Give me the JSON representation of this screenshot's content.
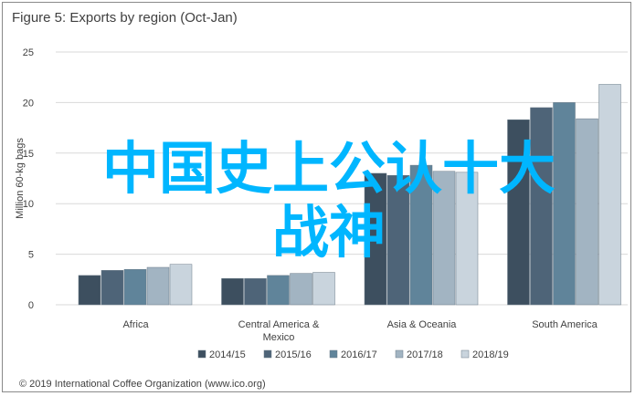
{
  "chart_data": {
    "type": "bar",
    "title": "Figure 5: Exports by region (Oct-Jan)",
    "ylabel": "Million 60-kg bags",
    "xlabel": "",
    "ylim": [
      0,
      25
    ],
    "yticks": [
      0,
      5,
      10,
      15,
      20,
      25
    ],
    "grid": true,
    "legend_position": "bottom",
    "categories": [
      "Africa",
      "Central America & Mexico",
      "Asia & Oceania",
      "South America"
    ],
    "category_label_lines": [
      [
        "Africa"
      ],
      [
        "Central America &",
        "Mexico"
      ],
      [
        "Asia & Oceania"
      ],
      [
        "South America"
      ]
    ],
    "series": [
      {
        "name": "2014/15",
        "color": "#3d4f5f",
        "values": [
          2.9,
          2.6,
          13.0,
          18.3
        ]
      },
      {
        "name": "2015/16",
        "color": "#4e6478",
        "values": [
          3.4,
          2.6,
          12.8,
          19.5
        ]
      },
      {
        "name": "2016/17",
        "color": "#60849a",
        "values": [
          3.5,
          2.9,
          13.8,
          20.0
        ]
      },
      {
        "name": "2017/18",
        "color": "#a2b4c2",
        "values": [
          3.7,
          3.1,
          13.2,
          18.4
        ]
      },
      {
        "name": "2018/19",
        "color": "#c9d4dd",
        "values": [
          4.0,
          3.2,
          13.1,
          21.8
        ]
      }
    ]
  },
  "source": "© 2019 International Coffee Organization (www.ico.org)",
  "overlay_lines": [
    "中国史上公认十大",
    "战神"
  ],
  "colors": {
    "overlay": "#00b6ff",
    "grid": "#d9d9d9",
    "axis_text": "#404040"
  }
}
